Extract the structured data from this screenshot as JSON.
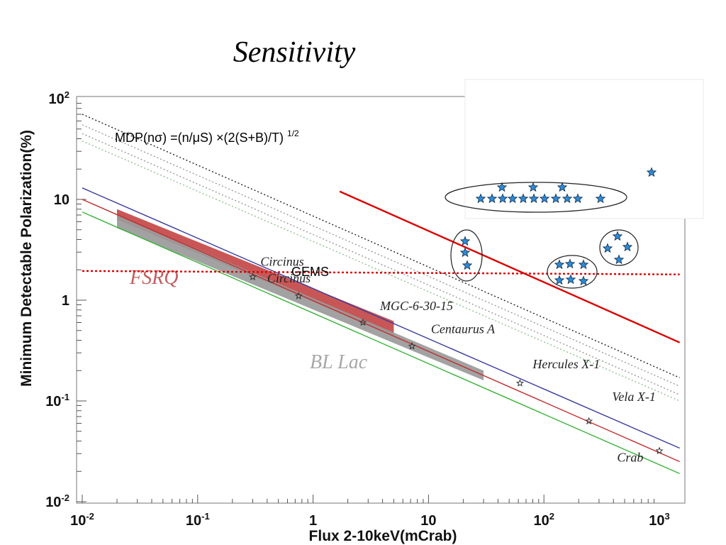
{
  "slide_title": "Sensitivity",
  "chart_data": {
    "type": "line",
    "xscale": "log",
    "yscale": "log",
    "xlim": [
      0.01,
      1500
    ],
    "ylim": [
      0.01,
      100
    ],
    "xlabel": "Flux 2-10keV(mCrab)",
    "ylabel": "Minimum Detectable Polarization(%)",
    "x_tick_labels": [
      {
        "base": "10",
        "exp": "-2",
        "value": 0.01
      },
      {
        "base": "10",
        "exp": "-1",
        "value": 0.1
      },
      {
        "base": "1",
        "exp": "",
        "value": 1
      },
      {
        "base": "10",
        "exp": "",
        "value": 10
      },
      {
        "base": "10",
        "exp": "2",
        "value": 100
      },
      {
        "base": "10",
        "exp": "3",
        "value": 1000
      }
    ],
    "y_tick_labels": [
      {
        "base": "10",
        "exp": "-2",
        "value": 0.01
      },
      {
        "base": "10",
        "exp": "-1",
        "value": 0.1
      },
      {
        "base": "1",
        "exp": "",
        "value": 1
      },
      {
        "base": "10",
        "exp": "",
        "value": 10
      },
      {
        "base": "10",
        "exp": "2",
        "value": 100
      }
    ],
    "formula": {
      "text": "MDP(nσ) =(n/μS) ×(2(S+B)/T) ",
      "sup": "1/2"
    },
    "series": [
      {
        "style": "dotted",
        "color": "#222222",
        "x": [
          0.01,
          1500
        ],
        "y": [
          70,
          0.17
        ]
      },
      {
        "style": "dotted",
        "color": "#9a9a9a",
        "x": [
          0.01,
          1500
        ],
        "y": [
          55,
          0.14
        ]
      },
      {
        "style": "dotted",
        "color": "#9a9a9a",
        "x": [
          0.01,
          1500
        ],
        "y": [
          45,
          0.115
        ]
      },
      {
        "style": "dotted",
        "color": "#90c090",
        "x": [
          0.01,
          1500
        ],
        "y": [
          38,
          0.1
        ]
      },
      {
        "style": "solid",
        "color": "#3a3aa0",
        "x": [
          0.01,
          1500
        ],
        "y": [
          13,
          0.034
        ]
      },
      {
        "style": "solid",
        "color": "#c03030",
        "x": [
          0.01,
          1500
        ],
        "y": [
          10,
          0.025
        ]
      },
      {
        "style": "solid",
        "color": "#3cb43c",
        "x": [
          0.01,
          1500
        ],
        "y": [
          7.5,
          0.019
        ]
      }
    ],
    "gems_line": {
      "label": "GEMS",
      "color": "#dd0000",
      "x": [
        0.01,
        1500
      ],
      "y": [
        1.95,
        1.8
      ]
    },
    "red_line": {
      "color": "#dd0000",
      "x": [
        1.7,
        1500
      ],
      "y": [
        12,
        0.38
      ]
    },
    "bands": [
      {
        "name": "FSRQ",
        "color": "#c44848",
        "label_color": "#c06060",
        "x": [
          0.02,
          5
        ],
        "y_top": [
          8,
          0.62
        ],
        "y_bottom": [
          6.3,
          0.45
        ]
      },
      {
        "name": "BL Lac",
        "color": "#9a9a9a",
        "label_color": "#a8a8a8",
        "x": [
          0.02,
          30
        ],
        "y_top": [
          7,
          0.2
        ],
        "y_bottom": [
          5.2,
          0.16
        ]
      }
    ],
    "sources": [
      {
        "name": "Circinus",
        "x": 0.3,
        "y": 1.7,
        "label_x": 0.35,
        "label_y": 2.2
      },
      {
        "name": "Circinus",
        "x": 0.75,
        "y": 1.1,
        "label_x": 0.4,
        "label_y": 1.5
      },
      {
        "name": "MGC-6-30-15",
        "x": 2.7,
        "y": 0.6,
        "label_x": 3.8,
        "label_y": 0.8
      },
      {
        "name": "Centaurus A",
        "x": 7.2,
        "y": 0.35,
        "label_x": 10.5,
        "label_y": 0.47
      },
      {
        "name": "Hercules X-1",
        "x": 62,
        "y": 0.15,
        "label_x": 80,
        "label_y": 0.21
      },
      {
        "name": "Vela X-1",
        "x": 245,
        "y": 0.063,
        "label_x": 390,
        "label_y": 0.1
      },
      {
        "name": "Crab",
        "x": 1000,
        "y": 0.032,
        "label_x": 430,
        "label_y": 0.025
      }
    ],
    "star_groups": [
      {
        "stars": [
          [
            656,
            340
          ],
          [
            656,
            356
          ],
          [
            659,
            374
          ]
        ]
      },
      {
        "stars": [
          [
            789,
            373
          ],
          [
            804,
            372
          ],
          [
            823,
            373
          ],
          [
            789,
            395
          ],
          [
            805,
            394
          ],
          [
            823,
            396
          ]
        ]
      },
      {
        "stars": [
          [
            871,
            333
          ],
          [
            857,
            350
          ],
          [
            885,
            348
          ],
          [
            873,
            366
          ]
        ]
      },
      {
        "stars": [
          [
            678,
            280
          ],
          [
            694,
            280
          ],
          [
            709,
            280
          ],
          [
            723,
            280
          ],
          [
            738,
            280
          ],
          [
            753,
            280
          ],
          [
            768,
            280
          ],
          [
            784,
            280
          ],
          [
            800,
            280
          ],
          [
            815,
            280
          ],
          [
            708,
            264
          ],
          [
            752,
            264
          ],
          [
            793,
            264
          ],
          [
            847,
            280
          ]
        ]
      },
      {
        "stars": [
          [
            919,
            243
          ]
        ]
      }
    ],
    "star_color": "#2e8bd6"
  }
}
